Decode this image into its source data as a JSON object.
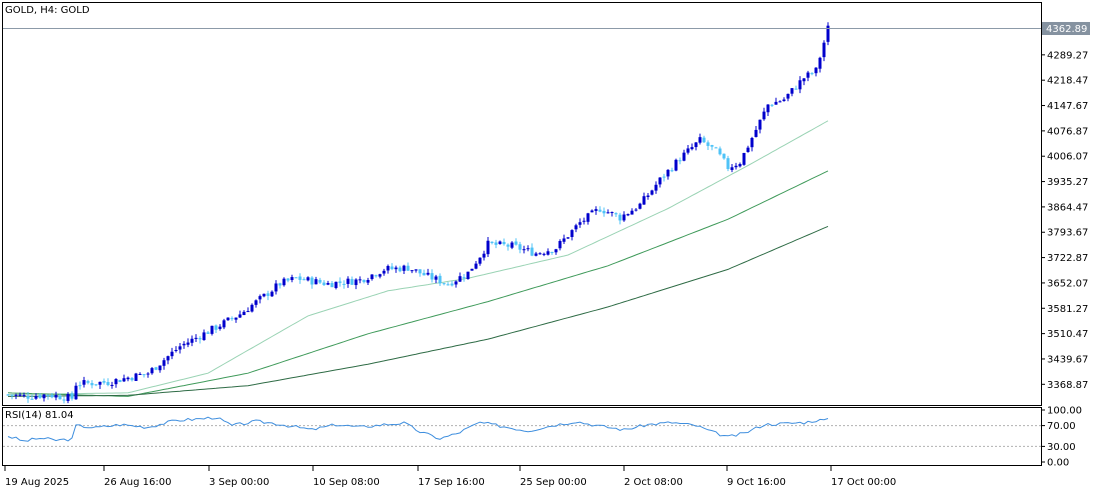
{
  "header": {
    "symbol_label": "GOLD, H4:  GOLD"
  },
  "rsi_header": {
    "label": "RSI(14) 81.04"
  },
  "colors": {
    "bull": "#0000cc",
    "bear": "#4fc3f7",
    "ma_fast": "#9ad3b4",
    "ma_mid": "#3f9a5a",
    "ma_slow": "#2e6b45",
    "rsi": "#3e8ede",
    "price_line": "#8c9aa8",
    "price_tag": "#8592a0",
    "frame": "#000000",
    "level": "#b0b0b0"
  },
  "chart_data": [
    {
      "type": "candlestick",
      "title": "GOLD, H4:  GOLD",
      "ylim": [
        3325,
        4395
      ],
      "yticks": [
        "3368.87",
        "3439.67",
        "3510.47",
        "3581.27",
        "3652.07",
        "3722.87",
        "3793.67",
        "3864.47",
        "3935.27",
        "4006.07",
        "4076.87",
        "4147.67",
        "4218.47",
        "4289.27"
      ],
      "current_price": "4362.89",
      "xtick_labels": [
        "19 Aug 2025",
        "26 Aug 16:00",
        "3 Sep 00:00",
        "10 Sep 08:00",
        "17 Sep 16:00",
        "25 Sep 00:00",
        "2 Oct 08:00",
        "9 Oct 16:00",
        "17 Oct 00:00"
      ],
      "bar_count": 206,
      "close_waypoints": [
        {
          "bar": 0,
          "value": 3340
        },
        {
          "bar": 4,
          "value": 3335
        },
        {
          "bar": 10,
          "value": 3340
        },
        {
          "bar": 16,
          "value": 3330
        },
        {
          "bar": 17,
          "value": 3370
        },
        {
          "bar": 25,
          "value": 3375
        },
        {
          "bar": 35,
          "value": 3400
        },
        {
          "bar": 43,
          "value": 3475
        },
        {
          "bar": 52,
          "value": 3528
        },
        {
          "bar": 58,
          "value": 3565
        },
        {
          "bar": 64,
          "value": 3615
        },
        {
          "bar": 68,
          "value": 3650
        },
        {
          "bar": 72,
          "value": 3665
        },
        {
          "bar": 80,
          "value": 3650
        },
        {
          "bar": 88,
          "value": 3660
        },
        {
          "bar": 94,
          "value": 3690
        },
        {
          "bar": 100,
          "value": 3695
        },
        {
          "bar": 105,
          "value": 3670
        },
        {
          "bar": 110,
          "value": 3650
        },
        {
          "bar": 115,
          "value": 3680
        },
        {
          "bar": 120,
          "value": 3760
        },
        {
          "bar": 126,
          "value": 3755
        },
        {
          "bar": 132,
          "value": 3735
        },
        {
          "bar": 137,
          "value": 3750
        },
        {
          "bar": 143,
          "value": 3820
        },
        {
          "bar": 148,
          "value": 3860
        },
        {
          "bar": 153,
          "value": 3835
        },
        {
          "bar": 158,
          "value": 3870
        },
        {
          "bar": 163,
          "value": 3940
        },
        {
          "bar": 168,
          "value": 4000
        },
        {
          "bar": 173,
          "value": 4050
        },
        {
          "bar": 177,
          "value": 4020
        },
        {
          "bar": 180,
          "value": 3975
        },
        {
          "bar": 183,
          "value": 3990
        },
        {
          "bar": 187,
          "value": 4080
        },
        {
          "bar": 190,
          "value": 4150
        },
        {
          "bar": 194,
          "value": 4165
        },
        {
          "bar": 199,
          "value": 4225
        },
        {
          "bar": 202,
          "value": 4245
        },
        {
          "bar": 205,
          "value": 4363
        }
      ],
      "moving_averages": [
        {
          "name": "MA fast",
          "points": [
            {
              "bar": 0,
              "value": 3340
            },
            {
              "bar": 30,
              "value": 3345
            },
            {
              "bar": 50,
              "value": 3400
            },
            {
              "bar": 75,
              "value": 3560
            },
            {
              "bar": 95,
              "value": 3630
            },
            {
              "bar": 115,
              "value": 3665
            },
            {
              "bar": 140,
              "value": 3730
            },
            {
              "bar": 165,
              "value": 3860
            },
            {
              "bar": 185,
              "value": 3980
            },
            {
              "bar": 205,
              "value": 4105
            }
          ]
        },
        {
          "name": "MA mid",
          "points": [
            {
              "bar": 0,
              "value": 3345
            },
            {
              "bar": 30,
              "value": 3335
            },
            {
              "bar": 60,
              "value": 3400
            },
            {
              "bar": 90,
              "value": 3510
            },
            {
              "bar": 120,
              "value": 3600
            },
            {
              "bar": 150,
              "value": 3700
            },
            {
              "bar": 180,
              "value": 3830
            },
            {
              "bar": 205,
              "value": 3965
            }
          ]
        },
        {
          "name": "MA slow",
          "points": [
            {
              "bar": 0,
              "value": 3335
            },
            {
              "bar": 30,
              "value": 3338
            },
            {
              "bar": 60,
              "value": 3365
            },
            {
              "bar": 90,
              "value": 3425
            },
            {
              "bar": 120,
              "value": 3495
            },
            {
              "bar": 150,
              "value": 3585
            },
            {
              "bar": 180,
              "value": 3690
            },
            {
              "bar": 205,
              "value": 3810
            }
          ]
        }
      ]
    },
    {
      "type": "line",
      "title": "RSI(14) 81.04",
      "ylim": [
        0,
        100
      ],
      "yticks": [
        "100.00",
        "70.00",
        "30.00",
        "0.00"
      ],
      "levels": [
        70,
        30
      ],
      "last_value": 81.04,
      "points": [
        {
          "bar": 0,
          "value": 50
        },
        {
          "bar": 4,
          "value": 40
        },
        {
          "bar": 8,
          "value": 46
        },
        {
          "bar": 12,
          "value": 42
        },
        {
          "bar": 16,
          "value": 44
        },
        {
          "bar": 17,
          "value": 70
        },
        {
          "bar": 22,
          "value": 66
        },
        {
          "bar": 28,
          "value": 72
        },
        {
          "bar": 35,
          "value": 67
        },
        {
          "bar": 42,
          "value": 80
        },
        {
          "bar": 48,
          "value": 83
        },
        {
          "bar": 52,
          "value": 86
        },
        {
          "bar": 56,
          "value": 70
        },
        {
          "bar": 62,
          "value": 78
        },
        {
          "bar": 66,
          "value": 75
        },
        {
          "bar": 70,
          "value": 70
        },
        {
          "bar": 76,
          "value": 62
        },
        {
          "bar": 82,
          "value": 72
        },
        {
          "bar": 88,
          "value": 67
        },
        {
          "bar": 94,
          "value": 72
        },
        {
          "bar": 99,
          "value": 75
        },
        {
          "bar": 103,
          "value": 58
        },
        {
          "bar": 108,
          "value": 45
        },
        {
          "bar": 112,
          "value": 54
        },
        {
          "bar": 118,
          "value": 76
        },
        {
          "bar": 124,
          "value": 68
        },
        {
          "bar": 130,
          "value": 60
        },
        {
          "bar": 136,
          "value": 70
        },
        {
          "bar": 142,
          "value": 78
        },
        {
          "bar": 148,
          "value": 69
        },
        {
          "bar": 154,
          "value": 62
        },
        {
          "bar": 160,
          "value": 72
        },
        {
          "bar": 166,
          "value": 76
        },
        {
          "bar": 172,
          "value": 70
        },
        {
          "bar": 176,
          "value": 58
        },
        {
          "bar": 180,
          "value": 48
        },
        {
          "bar": 184,
          "value": 55
        },
        {
          "bar": 189,
          "value": 72
        },
        {
          "bar": 194,
          "value": 74
        },
        {
          "bar": 199,
          "value": 76
        },
        {
          "bar": 202,
          "value": 80
        },
        {
          "bar": 205,
          "value": 81
        }
      ]
    }
  ]
}
